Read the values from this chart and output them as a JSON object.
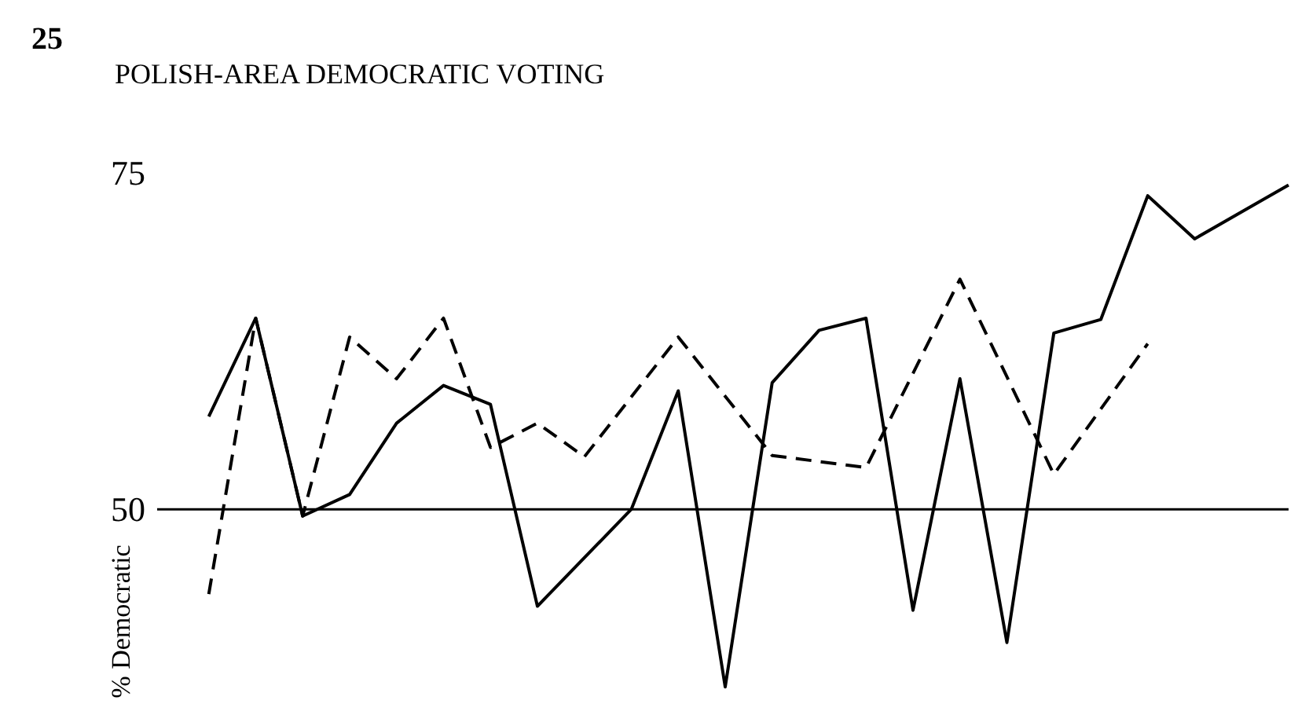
{
  "chart_data": {
    "type": "line",
    "title": "POLISH-AREA DEMOCRATIC VOTING",
    "ylabel": "% Democratic",
    "annotations": [
      "25"
    ],
    "categories": [
      null,
      null,
      null,
      null,
      null,
      null,
      null,
      null,
      null,
      null,
      null,
      null,
      null,
      null,
      null,
      null,
      null,
      null,
      null,
      null,
      null,
      null,
      null,
      null
    ],
    "ylim": [
      36,
      75
    ],
    "yticks": [
      50,
      75
    ],
    "ref_lines": [
      {
        "axis": "y",
        "value": 50,
        "color": "#000000",
        "line_style": "solid"
      }
    ],
    "series": [
      {
        "color": "#000000",
        "line_style": "solid",
        "values": [
          56.9,
          64.2,
          49.5,
          51.1,
          56.4,
          59.2,
          57.8,
          42.8,
          null,
          50,
          58.8,
          36.8,
          59.4,
          63.3,
          64.2,
          42.5,
          59.7,
          40.1,
          63.1,
          64.1,
          73.3,
          70.1,
          null,
          74.1
        ]
      },
      {
        "color": "#000000",
        "line_style": "dashed",
        "values": [
          43.7,
          64.2,
          49.5,
          62.8,
          59.7,
          64.2,
          54.6,
          56.4,
          53.9,
          null,
          62.8,
          null,
          54.0,
          null,
          53.1,
          null,
          67.1,
          null,
          52.6,
          null,
          62.3,
          null,
          null,
          null
        ]
      }
    ]
  }
}
